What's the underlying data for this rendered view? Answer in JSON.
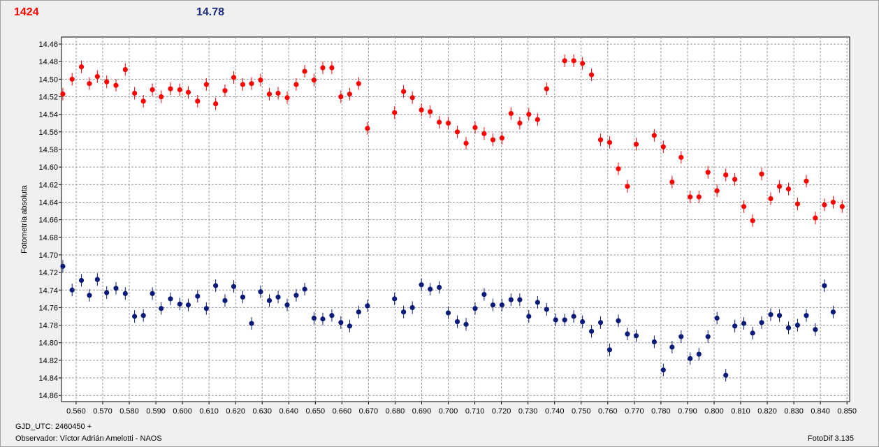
{
  "header": {
    "target_mag": "1424",
    "comparison_mag": "14.78"
  },
  "footer": {
    "gjd_label": "GJD_UTC: 2460450 +",
    "observer_label": "Observador: Víctor Adrián Amelotti - NAOS",
    "software": "FotoDif 3.135"
  },
  "colors": {
    "series_red": "#ff0000",
    "series_blue": "#0a1a78",
    "header_red": "#ff0000",
    "header_blue": "#1a2d7c"
  },
  "chart_data": {
    "type": "scatter",
    "title": "",
    "xlabel": "",
    "ylabel": "Fotometría absoluta",
    "xlim": [
      0.5545,
      0.851
    ],
    "ylim": [
      14.452,
      14.867
    ],
    "y_inverted": true,
    "grid": true,
    "x_ticks": [
      "0.560",
      "0.570",
      "0.580",
      "0.590",
      "0.600",
      "0.610",
      "0.620",
      "0.630",
      "0.640",
      "0.650",
      "0.660",
      "0.670",
      "0.680",
      "0.690",
      "0.700",
      "0.710",
      "0.720",
      "0.730",
      "0.740",
      "0.750",
      "0.760",
      "0.770",
      "0.780",
      "0.790",
      "0.800",
      "0.810",
      "0.820",
      "0.830",
      "0.840",
      "0.850"
    ],
    "y_ticks": [
      "14.46",
      "14.48",
      "14.50",
      "14.52",
      "14.54",
      "14.56",
      "14.58",
      "14.60",
      "14.62",
      "14.64",
      "14.66",
      "14.68",
      "14.70",
      "14.72",
      "14.74",
      "14.76",
      "14.78",
      "14.80",
      "14.82",
      "14.84",
      "14.86"
    ],
    "series": [
      {
        "color": "#ff0000",
        "x": [
          0.555,
          0.5585,
          0.562,
          0.565,
          0.568,
          0.5715,
          0.575,
          0.5785,
          0.582,
          0.5853,
          0.5887,
          0.592,
          0.5955,
          0.599,
          0.6022,
          0.6057,
          0.609,
          0.6125,
          0.616,
          0.6193,
          0.6227,
          0.626,
          0.6294,
          0.6327,
          0.636,
          0.6394,
          0.6428,
          0.646,
          0.6495,
          0.6528,
          0.6562,
          0.6596,
          0.6629,
          0.6663,
          0.6696,
          0.6798,
          0.6832,
          0.6865,
          0.6899,
          0.6932,
          0.6966,
          0.7,
          0.7034,
          0.7067,
          0.7101,
          0.7135,
          0.7168,
          0.7202,
          0.7236,
          0.7269,
          0.7303,
          0.7336,
          0.737,
          0.7438,
          0.7472,
          0.7505,
          0.7539,
          0.7573,
          0.7607,
          0.764,
          0.7674,
          0.7707,
          0.7775,
          0.7809,
          0.7842,
          0.7876,
          0.791,
          0.7943,
          0.7977,
          0.8011,
          0.8044,
          0.8078,
          0.8112,
          0.8145,
          0.8179,
          0.8213,
          0.8246,
          0.828,
          0.8314,
          0.8347,
          0.8381,
          0.8415,
          0.8448,
          0.8482
        ],
        "y": [
          14.517,
          14.5,
          14.486,
          14.505,
          14.497,
          14.503,
          14.507,
          14.489,
          14.516,
          14.525,
          14.512,
          14.52,
          14.511,
          14.512,
          14.515,
          14.525,
          14.506,
          14.528,
          14.513,
          14.498,
          14.506,
          14.505,
          14.501,
          14.517,
          14.516,
          14.521,
          14.506,
          14.491,
          14.501,
          14.487,
          14.487,
          14.52,
          14.517,
          14.505,
          14.556,
          14.538,
          14.514,
          14.521,
          14.535,
          14.537,
          14.549,
          14.55,
          14.56,
          14.573,
          14.555,
          14.562,
          14.569,
          14.567,
          14.539,
          14.55,
          14.54,
          14.546,
          14.511,
          14.479,
          14.479,
          14.482,
          14.495,
          14.569,
          14.572,
          14.602,
          14.622,
          14.574,
          14.564,
          14.577,
          14.617,
          14.589,
          14.634,
          14.634,
          14.606,
          14.627,
          14.609,
          14.614,
          14.645,
          14.661,
          14.608,
          14.636,
          14.622,
          14.625,
          14.642,
          14.616,
          14.658,
          14.643,
          14.64,
          14.645
        ]
      },
      {
        "color": "#0a1a78",
        "x": [
          0.555,
          0.5585,
          0.562,
          0.565,
          0.568,
          0.5715,
          0.575,
          0.5785,
          0.582,
          0.5853,
          0.5887,
          0.592,
          0.5955,
          0.599,
          0.6022,
          0.6057,
          0.609,
          0.6125,
          0.616,
          0.6193,
          0.6227,
          0.626,
          0.6294,
          0.6327,
          0.636,
          0.6394,
          0.6428,
          0.646,
          0.6495,
          0.6528,
          0.6562,
          0.6596,
          0.6629,
          0.6663,
          0.6696,
          0.6798,
          0.6832,
          0.6865,
          0.6899,
          0.6932,
          0.6966,
          0.7,
          0.7034,
          0.7067,
          0.7101,
          0.7135,
          0.7168,
          0.7202,
          0.7236,
          0.7269,
          0.7303,
          0.7336,
          0.737,
          0.7404,
          0.7438,
          0.7472,
          0.7505,
          0.7539,
          0.7573,
          0.7607,
          0.764,
          0.7674,
          0.7707,
          0.7775,
          0.7809,
          0.7842,
          0.7876,
          0.791,
          0.7943,
          0.7977,
          0.8011,
          0.8044,
          0.8078,
          0.8112,
          0.8145,
          0.8179,
          0.8213,
          0.8246,
          0.828,
          0.8314,
          0.8347,
          0.8381,
          0.8415,
          0.8448
        ],
        "y": [
          14.713,
          14.74,
          14.729,
          14.746,
          14.728,
          14.743,
          14.738,
          14.744,
          14.77,
          14.769,
          14.744,
          14.761,
          14.75,
          14.756,
          14.757,
          14.747,
          14.761,
          14.735,
          14.752,
          14.736,
          14.748,
          14.778,
          14.742,
          14.752,
          14.748,
          14.757,
          14.746,
          14.739,
          14.772,
          14.773,
          14.769,
          14.777,
          14.781,
          14.765,
          14.758,
          14.75,
          14.765,
          14.76,
          14.734,
          14.739,
          14.737,
          14.766,
          14.776,
          14.779,
          14.761,
          14.745,
          14.757,
          14.757,
          14.751,
          14.751,
          14.77,
          14.754,
          14.762,
          14.774,
          14.774,
          14.77,
          14.776,
          14.787,
          14.777,
          14.808,
          14.775,
          14.79,
          14.792,
          14.799,
          14.831,
          14.805,
          14.793,
          14.818,
          14.813,
          14.793,
          14.772,
          14.837,
          14.781,
          14.778,
          14.789,
          14.777,
          14.768,
          14.769,
          14.783,
          14.78,
          14.769,
          14.785,
          14.735,
          14.765
        ]
      }
    ]
  }
}
